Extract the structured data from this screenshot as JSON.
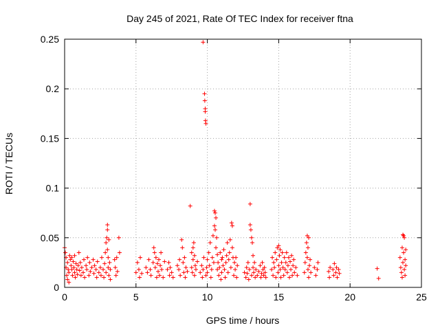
{
  "chart_data": {
    "type": "scatter",
    "title": "Day 245 of 2021, Rate Of TEC Index for receiver ftna",
    "xlabel": "GPS time / hours",
    "ylabel": "ROTI / TECUs",
    "xlim": [
      0,
      25
    ],
    "ylim": [
      0,
      0.25
    ],
    "x_ticks": [
      "0",
      "5",
      "10",
      "15",
      "20",
      "25"
    ],
    "y_ticks": [
      "0",
      "0.05",
      "0.1",
      "0.15",
      "0.2",
      "0.25"
    ],
    "grid": true,
    "marker": "+",
    "color": "#ff0000",
    "points": [
      [
        0.0,
        0.04
      ],
      [
        0.05,
        0.035
      ],
      [
        0.1,
        0.03
      ],
      [
        0.1,
        0.02
      ],
      [
        0.15,
        0.012
      ],
      [
        0.2,
        0.025
      ],
      [
        0.2,
        0.008
      ],
      [
        0.25,
        0.018
      ],
      [
        0.3,
        0.015
      ],
      [
        0.3,
        0.005
      ],
      [
        0.35,
        0.032
      ],
      [
        0.4,
        0.028
      ],
      [
        0.45,
        0.022
      ],
      [
        0.5,
        0.018
      ],
      [
        0.5,
        0.03
      ],
      [
        0.55,
        0.012
      ],
      [
        0.6,
        0.026
      ],
      [
        0.65,
        0.02
      ],
      [
        0.7,
        0.015
      ],
      [
        0.7,
        0.032
      ],
      [
        0.75,
        0.01
      ],
      [
        0.8,
        0.024
      ],
      [
        0.85,
        0.018
      ],
      [
        0.9,
        0.013
      ],
      [
        0.95,
        0.022
      ],
      [
        1.0,
        0.035
      ],
      [
        1.05,
        0.017
      ],
      [
        1.1,
        0.025
      ],
      [
        1.15,
        0.012
      ],
      [
        1.2,
        0.02
      ],
      [
        1.3,
        0.015
      ],
      [
        1.35,
        0.028
      ],
      [
        1.4,
        0.01
      ],
      [
        1.5,
        0.022
      ],
      [
        1.55,
        0.018
      ],
      [
        1.6,
        0.03
      ],
      [
        1.7,
        0.012
      ],
      [
        1.75,
        0.025
      ],
      [
        1.8,
        0.016
      ],
      [
        1.9,
        0.02
      ],
      [
        2.0,
        0.028
      ],
      [
        2.05,
        0.014
      ],
      [
        2.1,
        0.022
      ],
      [
        2.2,
        0.018
      ],
      [
        2.25,
        0.01
      ],
      [
        2.3,
        0.026
      ],
      [
        2.4,
        0.015
      ],
      [
        2.5,
        0.02
      ],
      [
        2.55,
        0.012
      ],
      [
        2.6,
        0.03
      ],
      [
        2.7,
        0.018
      ],
      [
        2.75,
        0.01
      ],
      [
        2.8,
        0.024
      ],
      [
        2.85,
        0.035
      ],
      [
        2.9,
        0.015
      ],
      [
        2.9,
        0.045
      ],
      [
        2.95,
        0.05
      ],
      [
        3.0,
        0.063
      ],
      [
        3.0,
        0.058
      ],
      [
        3.0,
        0.038
      ],
      [
        3.05,
        0.03
      ],
      [
        3.05,
        0.02
      ],
      [
        3.1,
        0.012
      ],
      [
        3.1,
        0.048
      ],
      [
        3.15,
        0.025
      ],
      [
        3.2,
        0.018
      ],
      [
        3.2,
        0.008
      ],
      [
        3.5,
        0.028
      ],
      [
        3.55,
        0.02
      ],
      [
        3.6,
        0.012
      ],
      [
        3.65,
        0.03
      ],
      [
        3.7,
        0.016
      ],
      [
        3.8,
        0.05
      ],
      [
        3.85,
        0.035
      ],
      [
        5.0,
        0.015
      ],
      [
        5.1,
        0.025
      ],
      [
        5.2,
        0.018
      ],
      [
        5.25,
        0.01
      ],
      [
        5.3,
        0.03
      ],
      [
        5.4,
        0.014
      ],
      [
        5.7,
        0.02
      ],
      [
        5.8,
        0.015
      ],
      [
        5.9,
        0.028
      ],
      [
        6.0,
        0.018
      ],
      [
        6.05,
        0.012
      ],
      [
        6.2,
        0.025
      ],
      [
        6.25,
        0.04
      ],
      [
        6.3,
        0.035
      ],
      [
        6.35,
        0.02
      ],
      [
        6.4,
        0.03
      ],
      [
        6.45,
        0.01
      ],
      [
        6.5,
        0.024
      ],
      [
        6.55,
        0.016
      ],
      [
        6.6,
        0.028
      ],
      [
        6.65,
        0.012
      ],
      [
        6.7,
        0.022
      ],
      [
        6.75,
        0.035
      ],
      [
        6.8,
        0.018
      ],
      [
        6.9,
        0.01
      ],
      [
        7.0,
        0.026
      ],
      [
        7.2,
        0.018
      ],
      [
        7.3,
        0.025
      ],
      [
        7.35,
        0.012
      ],
      [
        7.4,
        0.02
      ],
      [
        7.5,
        0.015
      ],
      [
        7.6,
        0.01
      ],
      [
        7.9,
        0.022
      ],
      [
        8.0,
        0.018
      ],
      [
        8.05,
        0.028
      ],
      [
        8.1,
        0.012
      ],
      [
        8.2,
        0.048
      ],
      [
        8.25,
        0.04
      ],
      [
        8.3,
        0.025
      ],
      [
        8.35,
        0.015
      ],
      [
        8.4,
        0.03
      ],
      [
        8.45,
        0.01
      ],
      [
        8.5,
        0.02
      ],
      [
        8.6,
        0.016
      ],
      [
        8.8,
        0.082
      ],
      [
        8.9,
        0.035
      ],
      [
        8.9,
        0.02
      ],
      [
        8.95,
        0.015
      ],
      [
        9.0,
        0.04
      ],
      [
        9.0,
        0.028
      ],
      [
        9.05,
        0.045
      ],
      [
        9.1,
        0.012
      ],
      [
        9.1,
        0.032
      ],
      [
        9.15,
        0.022
      ],
      [
        9.2,
        0.018
      ],
      [
        9.3,
        0.026
      ],
      [
        9.5,
        0.015
      ],
      [
        9.6,
        0.022
      ],
      [
        9.65,
        0.01
      ],
      [
        9.7,
        0.247
      ],
      [
        9.7,
        0.018
      ],
      [
        9.75,
        0.03
      ],
      [
        9.8,
        0.195
      ],
      [
        9.82,
        0.188
      ],
      [
        9.85,
        0.18
      ],
      [
        9.85,
        0.177
      ],
      [
        9.87,
        0.168
      ],
      [
        9.9,
        0.165
      ],
      [
        9.9,
        0.012
      ],
      [
        9.95,
        0.02
      ],
      [
        10.0,
        0.015
      ],
      [
        10.0,
        0.028
      ],
      [
        10.1,
        0.035
      ],
      [
        10.15,
        0.022
      ],
      [
        10.2,
        0.045
      ],
      [
        10.25,
        0.01
      ],
      [
        10.3,
        0.018
      ],
      [
        10.35,
        0.03
      ],
      [
        10.4,
        0.052
      ],
      [
        10.45,
        0.025
      ],
      [
        10.5,
        0.077
      ],
      [
        10.5,
        0.062
      ],
      [
        10.55,
        0.075
      ],
      [
        10.55,
        0.058
      ],
      [
        10.6,
        0.07
      ],
      [
        10.6,
        0.04
      ],
      [
        10.65,
        0.05
      ],
      [
        10.7,
        0.033
      ],
      [
        10.7,
        0.018
      ],
      [
        10.75,
        0.025
      ],
      [
        10.8,
        0.012
      ],
      [
        10.85,
        0.02
      ],
      [
        10.9,
        0.035
      ],
      [
        10.95,
        0.008
      ],
      [
        11.0,
        0.028
      ],
      [
        11.0,
        0.015
      ],
      [
        11.05,
        0.03
      ],
      [
        11.1,
        0.022
      ],
      [
        11.15,
        0.038
      ],
      [
        11.2,
        0.018
      ],
      [
        11.25,
        0.01
      ],
      [
        11.3,
        0.025
      ],
      [
        11.35,
        0.032
      ],
      [
        11.4,
        0.045
      ],
      [
        11.45,
        0.015
      ],
      [
        11.5,
        0.028
      ],
      [
        11.55,
        0.035
      ],
      [
        11.6,
        0.048
      ],
      [
        11.65,
        0.02
      ],
      [
        11.7,
        0.065
      ],
      [
        11.75,
        0.062
      ],
      [
        11.75,
        0.04
      ],
      [
        11.8,
        0.03
      ],
      [
        11.85,
        0.012
      ],
      [
        11.9,
        0.025
      ],
      [
        11.95,
        0.018
      ],
      [
        12.0,
        0.03
      ],
      [
        12.05,
        0.01
      ],
      [
        12.1,
        0.022
      ],
      [
        12.6,
        0.015
      ],
      [
        12.7,
        0.01
      ],
      [
        12.75,
        0.02
      ],
      [
        12.8,
        0.014
      ],
      [
        12.85,
        0.025
      ],
      [
        12.9,
        0.008
      ],
      [
        12.95,
        0.018
      ],
      [
        13.0,
        0.084
      ],
      [
        13.0,
        0.063
      ],
      [
        13.05,
        0.058
      ],
      [
        13.1,
        0.05
      ],
      [
        13.1,
        0.012
      ],
      [
        13.15,
        0.045
      ],
      [
        13.2,
        0.032
      ],
      [
        13.2,
        0.02
      ],
      [
        13.25,
        0.015
      ],
      [
        13.3,
        0.025
      ],
      [
        13.35,
        0.01
      ],
      [
        13.4,
        0.018
      ],
      [
        13.5,
        0.012
      ],
      [
        13.6,
        0.016
      ],
      [
        13.7,
        0.022
      ],
      [
        13.75,
        0.01
      ],
      [
        13.8,
        0.014
      ],
      [
        13.85,
        0.025
      ],
      [
        13.9,
        0.018
      ],
      [
        13.95,
        0.012
      ],
      [
        14.0,
        0.02
      ],
      [
        14.05,
        0.015
      ],
      [
        14.1,
        0.01
      ],
      [
        14.5,
        0.018
      ],
      [
        14.55,
        0.03
      ],
      [
        14.6,
        0.012
      ],
      [
        14.65,
        0.025
      ],
      [
        14.7,
        0.02
      ],
      [
        14.75,
        0.035
      ],
      [
        14.8,
        0.01
      ],
      [
        14.85,
        0.028
      ],
      [
        14.9,
        0.04
      ],
      [
        14.95,
        0.015
      ],
      [
        15.0,
        0.042
      ],
      [
        15.0,
        0.022
      ],
      [
        15.05,
        0.032
      ],
      [
        15.1,
        0.018
      ],
      [
        15.1,
        0.038
      ],
      [
        15.15,
        0.01
      ],
      [
        15.2,
        0.025
      ],
      [
        15.25,
        0.035
      ],
      [
        15.3,
        0.02
      ],
      [
        15.35,
        0.012
      ],
      [
        15.4,
        0.03
      ],
      [
        15.45,
        0.018
      ],
      [
        15.5,
        0.025
      ],
      [
        15.55,
        0.035
      ],
      [
        15.6,
        0.015
      ],
      [
        15.65,
        0.022
      ],
      [
        15.7,
        0.03
      ],
      [
        15.75,
        0.01
      ],
      [
        15.8,
        0.026
      ],
      [
        15.85,
        0.018
      ],
      [
        15.9,
        0.032
      ],
      [
        15.95,
        0.012
      ],
      [
        16.0,
        0.022
      ],
      [
        16.05,
        0.028
      ],
      [
        16.1,
        0.015
      ],
      [
        16.2,
        0.02
      ],
      [
        16.3,
        0.012
      ],
      [
        16.8,
        0.015
      ],
      [
        16.85,
        0.025
      ],
      [
        16.9,
        0.035
      ],
      [
        16.95,
        0.045
      ],
      [
        17.0,
        0.052
      ],
      [
        17.0,
        0.03
      ],
      [
        17.05,
        0.04
      ],
      [
        17.05,
        0.018
      ],
      [
        17.1,
        0.05
      ],
      [
        17.1,
        0.01
      ],
      [
        17.15,
        0.022
      ],
      [
        17.2,
        0.028
      ],
      [
        17.25,
        0.015
      ],
      [
        17.5,
        0.02
      ],
      [
        17.6,
        0.012
      ],
      [
        17.7,
        0.018
      ],
      [
        17.75,
        0.025
      ],
      [
        18.5,
        0.016
      ],
      [
        18.55,
        0.01
      ],
      [
        18.6,
        0.02
      ],
      [
        18.8,
        0.018
      ],
      [
        18.85,
        0.012
      ],
      [
        18.9,
        0.024
      ],
      [
        19.0,
        0.015
      ],
      [
        19.05,
        0.02
      ],
      [
        19.1,
        0.01
      ],
      [
        19.2,
        0.018
      ],
      [
        19.25,
        0.014
      ],
      [
        21.9,
        0.019
      ],
      [
        22.0,
        0.009
      ],
      [
        23.5,
        0.03
      ],
      [
        23.55,
        0.02
      ],
      [
        23.6,
        0.015
      ],
      [
        23.65,
        0.01
      ],
      [
        23.65,
        0.04
      ],
      [
        23.7,
        0.053
      ],
      [
        23.7,
        0.025
      ],
      [
        23.75,
        0.052
      ],
      [
        23.75,
        0.035
      ],
      [
        23.8,
        0.018
      ],
      [
        23.8,
        0.05
      ],
      [
        23.85,
        0.028
      ],
      [
        23.85,
        0.012
      ],
      [
        23.9,
        0.022
      ],
      [
        23.9,
        0.038
      ]
    ]
  }
}
